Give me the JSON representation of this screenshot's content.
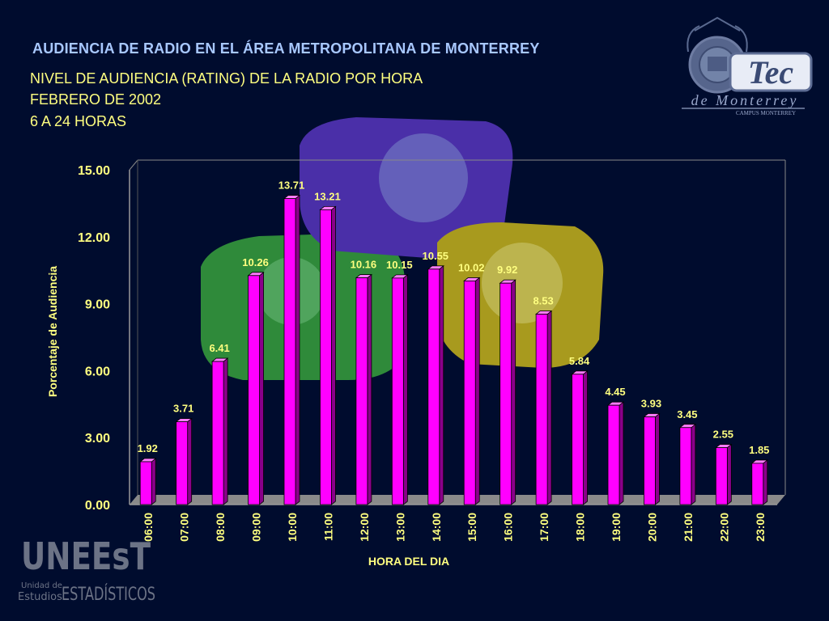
{
  "header": {
    "title": "AUDIENCIA DE RADIO EN EL ÁREA METROPOLITANA DE MONTERREY",
    "subtitle_lines": [
      "NIVEL DE AUDIENCIA (RATING) DE LA RADIO POR HORA",
      "FEBRERO DE 2002",
      "6 A 24 HORAS"
    ]
  },
  "logos": {
    "tec": {
      "name": "Tec",
      "line2": "de Monterrey",
      "line3": "CAMPUS MONTERREY"
    },
    "uneest": {
      "name": "UNEEsT",
      "line1": "Unidad de",
      "line2": "Estudios",
      "line3": "ESTADÍSTICOS"
    }
  },
  "colors": {
    "background": "#000c2e",
    "bar": "#ff00ff",
    "label": "#ffff80",
    "title": "#a8c8ff"
  },
  "chart_data": {
    "type": "bar",
    "title": "",
    "xlabel": "HORA DEL DIA",
    "ylabel": "Porcentaje de Audiencia",
    "ylim": [
      0,
      15
    ],
    "yticks": [
      "0.00",
      "3.00",
      "6.00",
      "9.00",
      "12.00",
      "15.00"
    ],
    "categories": [
      "06:00",
      "07:00",
      "08:00",
      "09:00",
      "10:00",
      "11:00",
      "12:00",
      "13:00",
      "14:00",
      "15:00",
      "16:00",
      "17:00",
      "18:00",
      "19:00",
      "20:00",
      "21:00",
      "22:00",
      "23:00"
    ],
    "values": [
      1.92,
      3.71,
      6.41,
      10.26,
      13.71,
      13.21,
      10.16,
      10.15,
      10.55,
      10.02,
      9.92,
      8.53,
      5.84,
      4.45,
      3.93,
      3.45,
      2.55,
      1.85
    ],
    "value_labels": [
      "1.92",
      "3.71",
      "6.41",
      "10.26",
      "13.71",
      "13.21",
      "10.16",
      "10.15",
      "10.55",
      "10.02",
      "9.92",
      "8.53",
      "5.84",
      "4.45",
      "3.93",
      "3.45",
      "2.55",
      "1.85"
    ],
    "grid": false,
    "legend": "none"
  }
}
